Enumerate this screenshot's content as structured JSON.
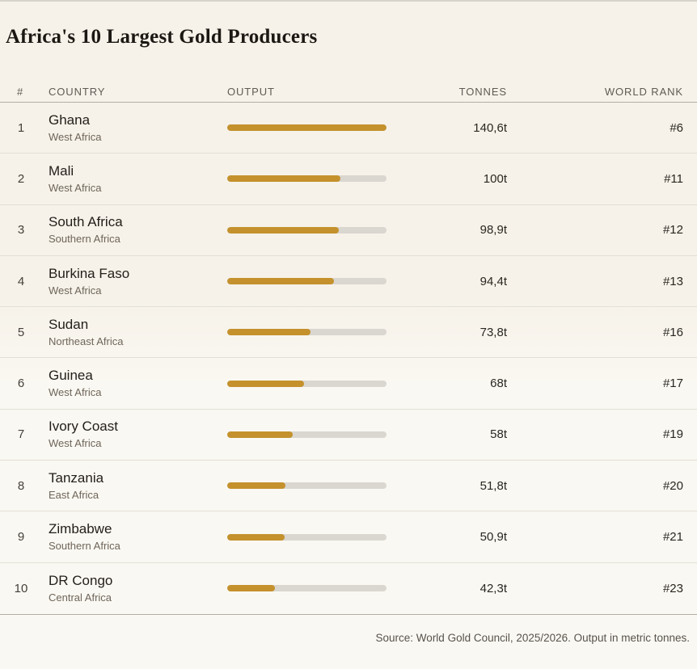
{
  "page": {
    "title": "Africa's 10 Largest Gold Producers",
    "footer": "Source: World Gold Council, 2025/2026. Output in metric tonnes."
  },
  "colors": {
    "bar_fill": "#c4912d",
    "bar_track": "#dad6d0",
    "background": "#f8f5ee",
    "title_text": "#1b1712"
  },
  "table": {
    "columns": {
      "rank": "#",
      "country": "COUNTRY",
      "output": "OUTPUT",
      "tonnes": "TONNES",
      "world_rank": "WORLD RANK"
    },
    "rows": [
      {
        "rank": "1",
        "country": "Ghana",
        "region": "West Africa",
        "tonnes": "140,6t",
        "world_rank": "#6",
        "bar_pct": 100
      },
      {
        "rank": "2",
        "country": "Mali",
        "region": "West Africa",
        "tonnes": "100t",
        "world_rank": "#11",
        "bar_pct": 71.1
      },
      {
        "rank": "3",
        "country": "South Africa",
        "region": "Southern Africa",
        "tonnes": "98,9t",
        "world_rank": "#12",
        "bar_pct": 70.3
      },
      {
        "rank": "4",
        "country": "Burkina Faso",
        "region": "West Africa",
        "tonnes": "94,4t",
        "world_rank": "#13",
        "bar_pct": 67.1
      },
      {
        "rank": "5",
        "country": "Sudan",
        "region": "Northeast Africa",
        "tonnes": "73,8t",
        "world_rank": "#16",
        "bar_pct": 52.5
      },
      {
        "rank": "6",
        "country": "Guinea",
        "region": "West Africa",
        "tonnes": "68t",
        "world_rank": "#17",
        "bar_pct": 48.4
      },
      {
        "rank": "7",
        "country": "Ivory Coast",
        "region": "West Africa",
        "tonnes": "58t",
        "world_rank": "#19",
        "bar_pct": 41.3
      },
      {
        "rank": "8",
        "country": "Tanzania",
        "region": "East Africa",
        "tonnes": "51,8t",
        "world_rank": "#20",
        "bar_pct": 36.8
      },
      {
        "rank": "9",
        "country": "Zimbabwe",
        "region": "Southern Africa",
        "tonnes": "50,9t",
        "world_rank": "#21",
        "bar_pct": 36.2
      },
      {
        "rank": "10",
        "country": "DR Congo",
        "region": "Central Africa",
        "tonnes": "42,3t",
        "world_rank": "#23",
        "bar_pct": 30.1
      }
    ]
  },
  "chart_data": {
    "type": "bar",
    "orientation": "horizontal",
    "title": "Africa's 10 Largest Gold Producers",
    "categories": [
      "Ghana",
      "Mali",
      "South Africa",
      "Burkina Faso",
      "Sudan",
      "Guinea",
      "Ivory Coast",
      "Tanzania",
      "Zimbabwe",
      "DR Congo"
    ],
    "values": [
      140.6,
      100,
      98.9,
      94.4,
      73.8,
      68,
      58,
      51.8,
      50.9,
      42.3
    ],
    "value_labels": [
      "140,6t",
      "100t",
      "98,9t",
      "94,4t",
      "73,8t",
      "68t",
      "58t",
      "51,8t",
      "50,9t",
      "42,3t"
    ],
    "regions": [
      "West Africa",
      "West Africa",
      "Southern Africa",
      "West Africa",
      "Northeast Africa",
      "West Africa",
      "West Africa",
      "East Africa",
      "Southern Africa",
      "Central Africa"
    ],
    "world_ranks": [
      "#6",
      "#11",
      "#12",
      "#13",
      "#16",
      "#17",
      "#19",
      "#20",
      "#21",
      "#23"
    ],
    "xlabel": "Output (metric tonnes)",
    "ylabel": "Country",
    "xlim": [
      0,
      140.6
    ],
    "grid": false,
    "legend": false,
    "bar_color": "#c4912d",
    "source_note": "Source: World Gold Council, 2025/2026. Output in metric tonnes."
  }
}
